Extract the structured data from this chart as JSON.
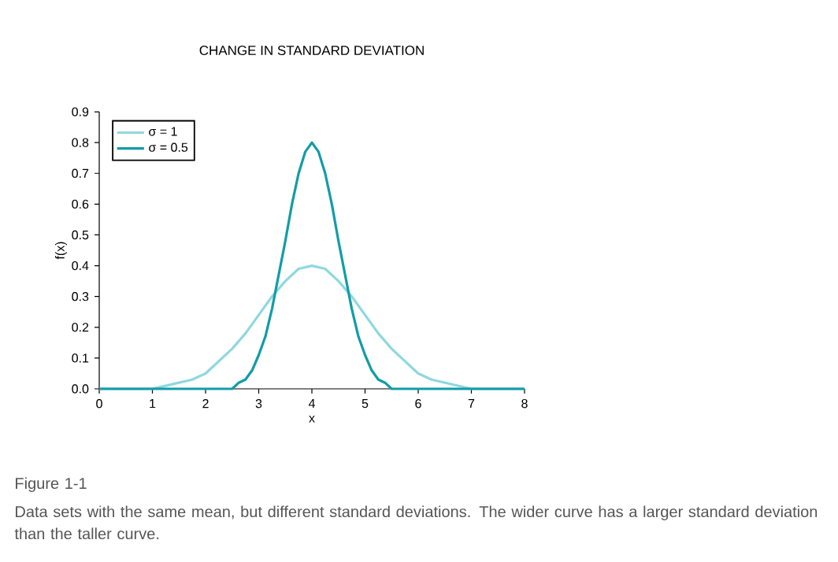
{
  "chart_data": {
    "type": "line",
    "title": "CHANGE IN STANDARD DEVIATION",
    "xlabel": "x",
    "ylabel": "f(x)",
    "xlim": [
      0,
      8
    ],
    "ylim": [
      0,
      0.9
    ],
    "xticks": [
      0,
      1,
      2,
      3,
      4,
      5,
      6,
      7,
      8
    ],
    "yticks": [
      {
        "value": 0,
        "label": "0.0"
      },
      {
        "value": 0.1,
        "label": "0.1"
      },
      {
        "value": 0.2,
        "label": "0.2"
      },
      {
        "value": 0.3,
        "label": "0.3"
      },
      {
        "value": 0.4,
        "label": "0.4"
      },
      {
        "value": 0.5,
        "label": "0.5"
      },
      {
        "value": 0.6,
        "label": "0.6"
      },
      {
        "value": 0.7,
        "label": "0.7"
      },
      {
        "value": 0.8,
        "label": "0.8"
      },
      {
        "value": 0.9,
        "label": "0.9"
      }
    ],
    "grid": false,
    "legend": "top left",
    "marker": "none",
    "line_style": "solid",
    "series": [
      {
        "name": "σ = 1",
        "color": "#8fd8df",
        "x": [
          0,
          1,
          1.25,
          1.5,
          1.75,
          2,
          2.25,
          2.5,
          2.75,
          3,
          3.25,
          3.5,
          3.75,
          4,
          4.25,
          4.5,
          4.75,
          5,
          5.25,
          5.5,
          5.75,
          6,
          6.25,
          6.5,
          6.75,
          7,
          8
        ],
        "values": [
          0,
          0,
          0.01,
          0.02,
          0.03,
          0.05,
          0.09,
          0.13,
          0.18,
          0.24,
          0.3,
          0.35,
          0.39,
          0.4,
          0.39,
          0.35,
          0.3,
          0.24,
          0.18,
          0.13,
          0.09,
          0.05,
          0.03,
          0.02,
          0.01,
          0,
          0
        ]
      },
      {
        "name": "σ = 0.5",
        "color": "#139ca6",
        "x": [
          0,
          2.5,
          2.625,
          2.75,
          2.875,
          3,
          3.125,
          3.25,
          3.375,
          3.5,
          3.625,
          3.75,
          3.875,
          4,
          4.125,
          4.25,
          4.375,
          4.5,
          4.625,
          4.75,
          4.875,
          5,
          5.125,
          5.25,
          5.375,
          5.5,
          8
        ],
        "values": [
          0,
          0,
          0.02,
          0.03,
          0.06,
          0.11,
          0.17,
          0.26,
          0.37,
          0.48,
          0.6,
          0.7,
          0.77,
          0.8,
          0.77,
          0.7,
          0.6,
          0.48,
          0.37,
          0.26,
          0.17,
          0.11,
          0.06,
          0.03,
          0.02,
          0,
          0
        ]
      }
    ],
    "annotations": [
      "Figure 1-1",
      "Data sets with the same mean, but different standard deviations. The wider curve has a larger standard deviation than the taller curve."
    ]
  }
}
